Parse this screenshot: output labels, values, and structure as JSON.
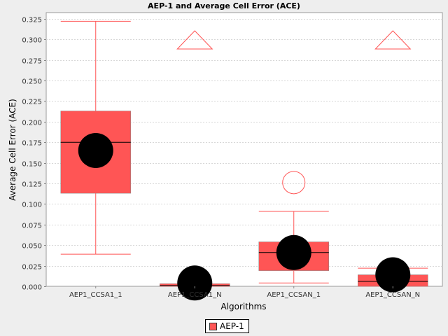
{
  "chart_data": {
    "type": "boxplot",
    "title": "AEP-1 and Average Cell Error (ACE)",
    "xlabel": "Algorithms",
    "ylabel": "Average Cell Error (ACE)",
    "ylim": [
      0.0,
      0.3325
    ],
    "yticks": [
      0.0,
      0.025,
      0.05,
      0.075,
      0.1,
      0.125,
      0.15,
      0.175,
      0.2,
      0.225,
      0.25,
      0.275,
      0.3,
      0.325
    ],
    "ytick_labels": [
      "0.000",
      "0.025",
      "0.050",
      "0.075",
      "0.100",
      "0.125",
      "0.150",
      "0.175",
      "0.200",
      "0.225",
      "0.250",
      "0.275",
      "0.300",
      "0.325"
    ],
    "grid": true,
    "categories": [
      "AEP1_CCSA1_1",
      "AEP1_CCSA1_N",
      "AEP1_CCSAN_1",
      "AEP1_CCSAN_N"
    ],
    "series": [
      {
        "name": "AEP-1",
        "color": "#ff5555",
        "mean_color": "#000000",
        "boxes": [
          {
            "whisker_low": 0.039,
            "q1": 0.113,
            "median": 0.175,
            "q3": 0.213,
            "whisker_high": 0.322,
            "mean": 0.165,
            "outliers": [],
            "far_out_above": false
          },
          {
            "whisker_low": 0.0,
            "q1": 0.0,
            "median": 0.001,
            "q3": 0.003,
            "whisker_high": 0.003,
            "mean": 0.004,
            "outliers": [],
            "far_out_above": true
          },
          {
            "whisker_low": 0.004,
            "q1": 0.019,
            "median": 0.041,
            "q3": 0.054,
            "whisker_high": 0.091,
            "mean": 0.041,
            "outliers": [
              0.126
            ],
            "far_out_above": false
          },
          {
            "whisker_low": 0.0,
            "q1": 0.0,
            "median": 0.006,
            "q3": 0.014,
            "whisker_high": 0.022,
            "mean": 0.014,
            "outliers": [],
            "far_out_above": true
          }
        ]
      }
    ],
    "legend": {
      "position": "bottom-center",
      "label": "AEP-1"
    }
  }
}
